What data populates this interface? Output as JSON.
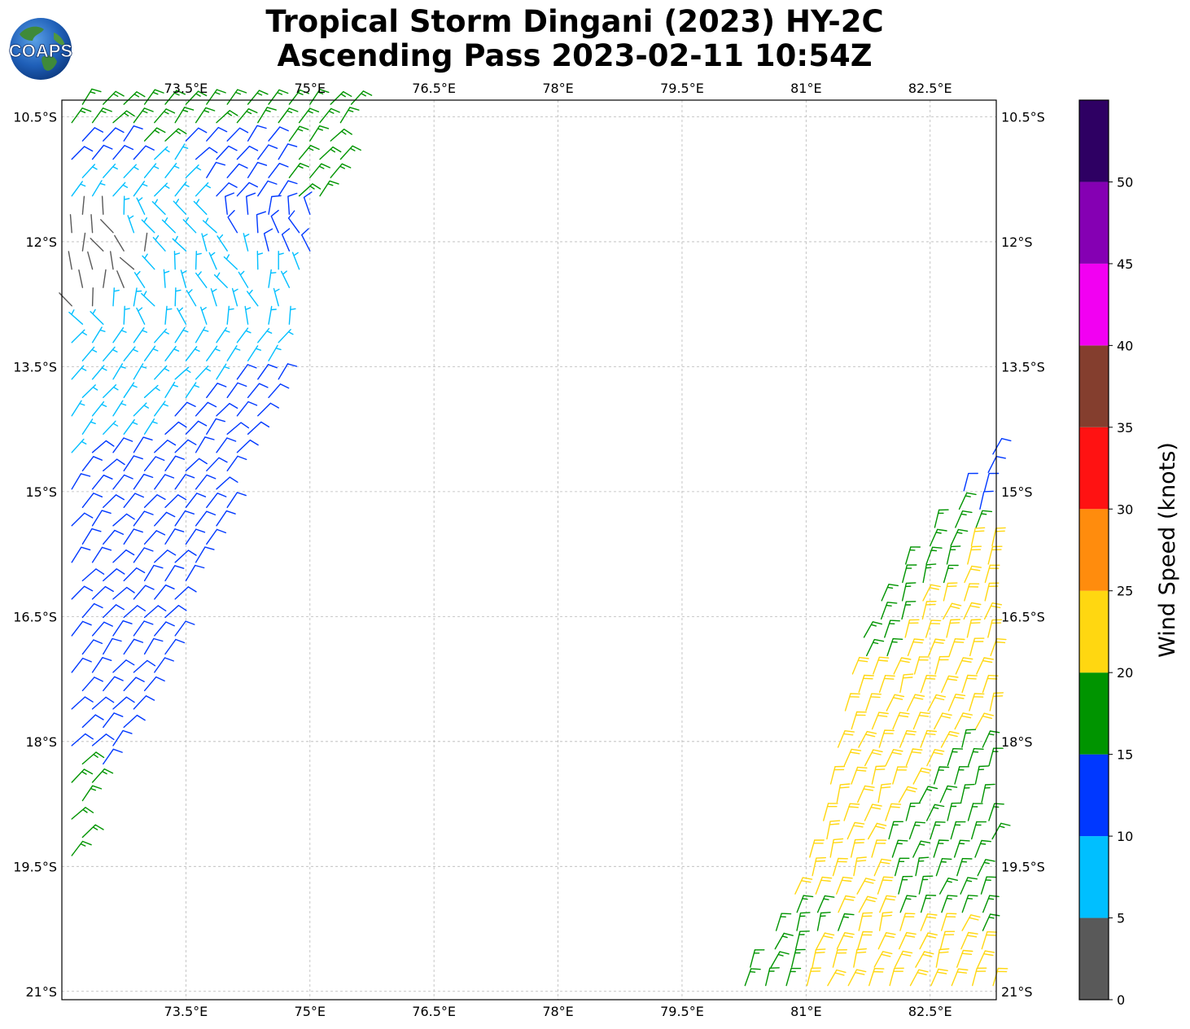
{
  "header": {
    "title_line1": "Tropical Storm Dingani (2023) HY-2C",
    "title_line2": "Ascending Pass 2023-02-11 10:54Z",
    "logo_text": "COAPS"
  },
  "chart_data": {
    "type": "wind_barb_map",
    "title": "Tropical Storm Dingani (2023) HY-2C Ascending Pass 2023-02-11 10:54Z",
    "xlim": [
      72.0,
      83.3
    ],
    "ylim": [
      -21.1,
      -10.3
    ],
    "x_ticks": [
      73.5,
      75,
      76.5,
      78,
      79.5,
      81,
      82.5
    ],
    "x_tick_labels": [
      "73.5°E",
      "75°E",
      "76.5°E",
      "78°E",
      "79.5°E",
      "81°E",
      "82.5°E"
    ],
    "y_ticks": [
      -10.5,
      -12,
      -13.5,
      -15,
      -16.5,
      -18,
      -19.5,
      -21
    ],
    "y_tick_labels": [
      "10.5°S",
      "12°S",
      "13.5°S",
      "15°S",
      "16.5°S",
      "18°S",
      "19.5°S",
      "21°S"
    ],
    "grid": true,
    "colorbar": {
      "label": "Wind Speed (knots)",
      "bins": [
        0,
        5,
        10,
        15,
        20,
        25,
        30,
        35,
        40,
        45,
        50,
        55
      ],
      "tick_values": [
        0,
        5,
        10,
        15,
        20,
        25,
        30,
        35,
        40,
        45,
        50
      ],
      "tick_labels": [
        "0",
        "5",
        "10",
        "15",
        "20",
        "25",
        "30",
        "35",
        "40",
        "45",
        "50"
      ],
      "colors": [
        "#595959",
        "#00bfff",
        "#0038ff",
        "#009400",
        "#ffd711",
        "#ff8c0d",
        "#ff1212",
        "#843e2e",
        "#f200f2",
        "#8500b3",
        "#2e0063"
      ]
    },
    "swaths": [
      {
        "name": "west",
        "lat_range": [
          -10.3,
          -19.6
        ],
        "lon_west": 71.9,
        "lon_east_by_lat": [
          [
            -10.3,
            75.7
          ],
          [
            -11.5,
            75.2
          ],
          [
            -12.6,
            74.9
          ],
          [
            -13.5,
            74.7
          ],
          [
            -14.5,
            74.3
          ],
          [
            -15.5,
            73.9
          ],
          [
            -16.5,
            73.5
          ],
          [
            -17.5,
            73.0
          ],
          [
            -18.3,
            72.6
          ],
          [
            -19.0,
            72.3
          ],
          [
            -19.6,
            72.1
          ]
        ],
        "speed_samples": [
          {
            "lat": -10.5,
            "lon": 72.6,
            "spd": 17
          },
          {
            "lat": -10.5,
            "lon": 74.4,
            "spd": 16
          },
          {
            "lat": -10.5,
            "lon": 75.4,
            "spd": 17
          },
          {
            "lat": -11.0,
            "lon": 72.5,
            "spd": 13
          },
          {
            "lat": -11.0,
            "lon": 74.3,
            "spd": 13
          },
          {
            "lat": -11.2,
            "lon": 75.0,
            "spd": 16
          },
          {
            "lat": -11.3,
            "lon": 72.4,
            "spd": 9
          },
          {
            "lat": -11.5,
            "lon": 73.2,
            "spd": 8
          },
          {
            "lat": -11.7,
            "lon": 74.6,
            "spd": 12
          },
          {
            "lat": -11.9,
            "lon": 72.3,
            "spd": 4
          },
          {
            "lat": -12.2,
            "lon": 72.4,
            "spd": 3
          },
          {
            "lat": -12.3,
            "lon": 73.6,
            "spd": 8
          },
          {
            "lat": -12.6,
            "lon": 72.4,
            "spd": 3
          },
          {
            "lat": -12.6,
            "lon": 74.3,
            "spd": 9
          },
          {
            "lat": -13.0,
            "lon": 72.7,
            "spd": 8
          },
          {
            "lat": -13.5,
            "lon": 73.3,
            "spd": 8
          },
          {
            "lat": -13.9,
            "lon": 72.6,
            "spd": 9
          },
          {
            "lat": -14.2,
            "lon": 73.8,
            "spd": 12
          },
          {
            "lat": -15.0,
            "lon": 72.8,
            "spd": 12
          },
          {
            "lat": -16.0,
            "lon": 72.9,
            "spd": 13
          },
          {
            "lat": -17.0,
            "lon": 72.6,
            "spd": 14
          },
          {
            "lat": -18.0,
            "lon": 72.4,
            "spd": 14
          },
          {
            "lat": -18.5,
            "lon": 72.3,
            "spd": 16
          },
          {
            "lat": -19.2,
            "lon": 72.1,
            "spd": 16
          }
        ],
        "barb_orientation_deg": [
          40,
          60
        ]
      },
      {
        "name": "east",
        "lat_range": [
          -14.5,
          -21.1
        ],
        "lon_east": 83.3,
        "lon_west_by_lat": [
          [
            -14.5,
            83.2
          ],
          [
            -15.0,
            82.8
          ],
          [
            -15.5,
            82.4
          ],
          [
            -16.0,
            82.0
          ],
          [
            -16.5,
            81.7
          ],
          [
            -17.0,
            81.5
          ],
          [
            -17.5,
            81.4
          ],
          [
            -18.0,
            81.3
          ],
          [
            -18.5,
            81.2
          ],
          [
            -19.0,
            81.1
          ],
          [
            -19.5,
            80.9
          ],
          [
            -20.0,
            80.7
          ],
          [
            -20.5,
            80.4
          ],
          [
            -21.1,
            79.9
          ]
        ],
        "speed_samples": [
          {
            "lat": -14.7,
            "lon": 83.1,
            "spd": 13
          },
          {
            "lat": -15.0,
            "lon": 82.9,
            "spd": 13
          },
          {
            "lat": -15.3,
            "lon": 82.8,
            "spd": 17
          },
          {
            "lat": -15.8,
            "lon": 82.5,
            "spd": 17
          },
          {
            "lat": -16.5,
            "lon": 81.9,
            "spd": 17
          },
          {
            "lat": -15.9,
            "lon": 83.1,
            "spd": 21
          },
          {
            "lat": -16.8,
            "lon": 82.5,
            "spd": 21
          },
          {
            "lat": -17.5,
            "lon": 82.0,
            "spd": 21
          },
          {
            "lat": -18.5,
            "lon": 81.7,
            "spd": 21
          },
          {
            "lat": -19.0,
            "lon": 82.6,
            "spd": 17
          },
          {
            "lat": -19.4,
            "lon": 82.8,
            "spd": 17
          },
          {
            "lat": -19.7,
            "lon": 81.1,
            "spd": 21
          },
          {
            "lat": -20.1,
            "lon": 80.8,
            "spd": 17
          },
          {
            "lat": -20.4,
            "lon": 80.6,
            "spd": 16
          },
          {
            "lat": -20.8,
            "lon": 80.3,
            "spd": 16
          },
          {
            "lat": -20.9,
            "lon": 81.4,
            "spd": 21
          },
          {
            "lat": -21.0,
            "lon": 82.5,
            "spd": 21
          }
        ],
        "barb_orientation_deg": [
          60,
          80
        ]
      }
    ]
  }
}
